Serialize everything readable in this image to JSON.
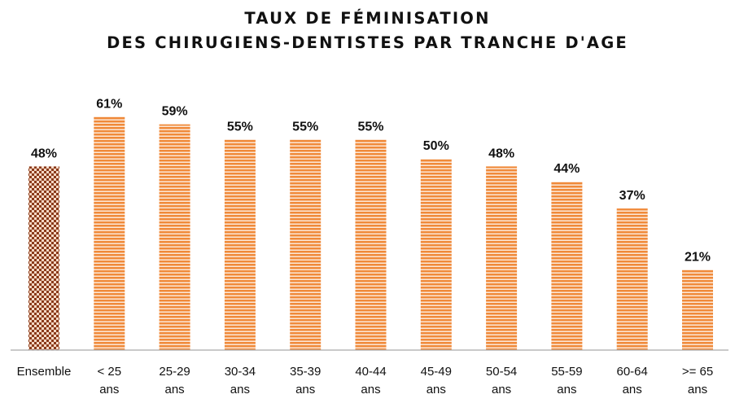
{
  "title": {
    "line1": "TAUX DE FÉMINISATION",
    "line2": "DES CHIRUGIENS-DENTISTES PAR TRANCHE D'AGE"
  },
  "colors": {
    "bar": "#f08a3a",
    "bar_stripe": "#ffffff",
    "ensemble_dark": "#8a3a1a",
    "ensemble_light": "#f4d7c4",
    "axis": "#aaaaaa",
    "text": "#111111"
  },
  "chart_data": {
    "type": "bar",
    "categories": [
      [
        "Ensemble"
      ],
      [
        "< 25",
        "ans"
      ],
      [
        "25-29",
        "ans"
      ],
      [
        "30-34",
        "ans"
      ],
      [
        "35-39",
        "ans"
      ],
      [
        "40-44",
        "ans"
      ],
      [
        "45-49",
        "ans"
      ],
      [
        "50-54",
        "ans"
      ],
      [
        "55-59",
        "ans"
      ],
      [
        "60-64",
        "ans"
      ],
      [
        ">= 65",
        "ans"
      ]
    ],
    "values": [
      48,
      61,
      59,
      55,
      55,
      55,
      50,
      48,
      44,
      37,
      21
    ],
    "value_labels": [
      "48%",
      "61%",
      "59%",
      "55%",
      "55%",
      "55%",
      "50%",
      "48%",
      "44%",
      "37%",
      "21%"
    ],
    "unit": "%",
    "ylim": [
      0,
      100
    ],
    "grid": false,
    "legend": "none"
  }
}
